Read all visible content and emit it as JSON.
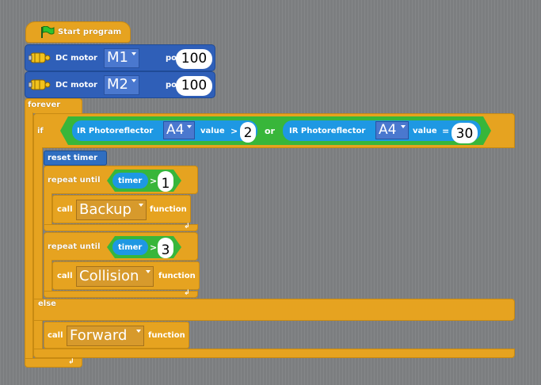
{
  "start": {
    "label": "Start program"
  },
  "motors": [
    {
      "label": "DC motor",
      "port": "M1",
      "power_label": "power",
      "power": "100"
    },
    {
      "label": "DC motor",
      "port": "M2",
      "power_label": "power",
      "power": "100"
    }
  ],
  "forever": {
    "label": "forever"
  },
  "if_block": {
    "label": "if",
    "else_label": "else",
    "cond1": {
      "sensor": "IR Photoreflector",
      "port": "A4",
      "value_label": "value",
      "op": ">",
      "num": "2"
    },
    "or_label": "or",
    "cond2": {
      "sensor": "IR Photoreflector",
      "port": "A4",
      "value_label": "value",
      "op": "=",
      "num": "30"
    }
  },
  "reset_timer": "reset timer",
  "repeat1": {
    "label": "repeat until",
    "timer": "timer",
    "op": ">",
    "num": "1",
    "call": "call",
    "func": "Backup",
    "func_label": "function"
  },
  "repeat2": {
    "label": "repeat until",
    "timer": "timer",
    "op": ">",
    "num": "3",
    "call": "call",
    "func": "Collision",
    "func_label": "function"
  },
  "call3": {
    "call": "call",
    "func": "Forward",
    "func_label": "function"
  },
  "icons": [
    "flag-icon",
    "motor-icon",
    "return-arrow-icon"
  ],
  "colors": {
    "control": "#e6a320",
    "motor": "#2f5fb8",
    "sensor": "#1e98e3",
    "condition": "#38b63a",
    "background": "#7c7e80"
  }
}
